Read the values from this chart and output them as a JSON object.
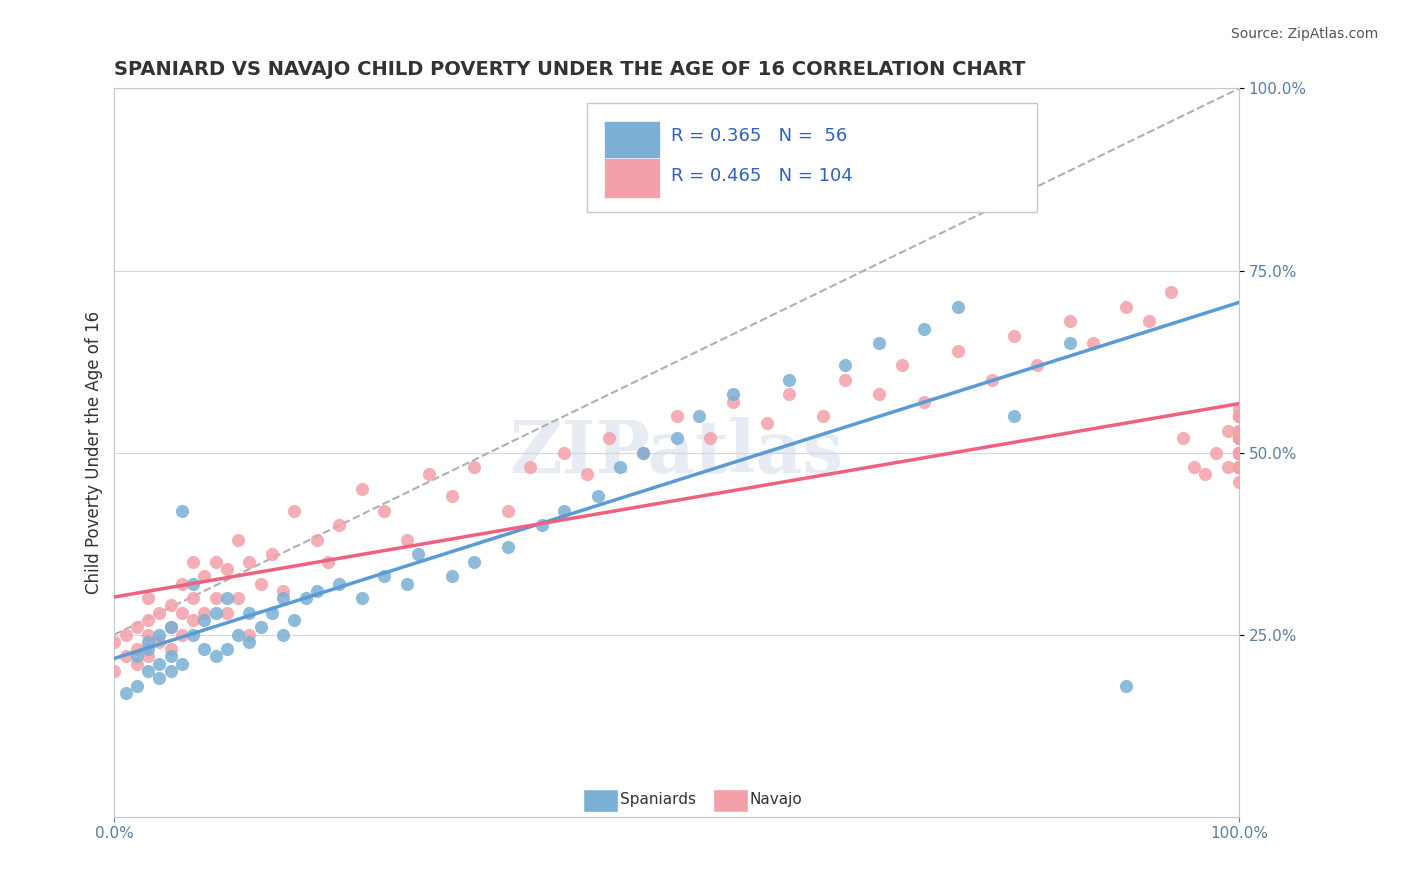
{
  "title": "SPANIARD VS NAVAJO CHILD POVERTY UNDER THE AGE OF 16 CORRELATION CHART",
  "source": "Source: ZipAtlas.com",
  "xlabel": "",
  "ylabel": "Child Poverty Under the Age of 16",
  "xlim": [
    0.0,
    1.0
  ],
  "ylim": [
    0.0,
    1.0
  ],
  "xtick_labels": [
    "0.0%",
    "100.0%"
  ],
  "ytick_labels": [
    "25.0%",
    "50.0%",
    "75.0%",
    "100.0%"
  ],
  "spaniard_color": "#7BAFD4",
  "navajo_color": "#F4A0A8",
  "spaniard_line_color": "#5B9BD5",
  "navajo_line_color": "#F06080",
  "trend_line_color": "#B0B0B0",
  "legend_R_spaniard": "0.365",
  "legend_N_spaniard": "56",
  "legend_R_navajo": "0.465",
  "legend_N_navajo": "104",
  "watermark": "ZIPatlas",
  "background_color": "#ffffff",
  "grid_color": "#D0D8E8",
  "spaniard_points_x": [
    0.01,
    0.02,
    0.02,
    0.03,
    0.03,
    0.03,
    0.04,
    0.04,
    0.04,
    0.05,
    0.05,
    0.05,
    0.06,
    0.06,
    0.07,
    0.07,
    0.08,
    0.08,
    0.09,
    0.09,
    0.1,
    0.1,
    0.11,
    0.12,
    0.12,
    0.13,
    0.14,
    0.15,
    0.15,
    0.16,
    0.17,
    0.18,
    0.2,
    0.22,
    0.24,
    0.26,
    0.27,
    0.3,
    0.32,
    0.35,
    0.38,
    0.4,
    0.43,
    0.45,
    0.47,
    0.5,
    0.52,
    0.55,
    0.6,
    0.65,
    0.68,
    0.72,
    0.75,
    0.8,
    0.85,
    0.9
  ],
  "spaniard_points_y": [
    0.17,
    0.18,
    0.22,
    0.2,
    0.23,
    0.24,
    0.19,
    0.21,
    0.25,
    0.2,
    0.22,
    0.26,
    0.21,
    0.42,
    0.25,
    0.32,
    0.23,
    0.27,
    0.22,
    0.28,
    0.23,
    0.3,
    0.25,
    0.24,
    0.28,
    0.26,
    0.28,
    0.25,
    0.3,
    0.27,
    0.3,
    0.31,
    0.32,
    0.3,
    0.33,
    0.32,
    0.36,
    0.33,
    0.35,
    0.37,
    0.4,
    0.42,
    0.44,
    0.48,
    0.5,
    0.52,
    0.55,
    0.58,
    0.6,
    0.62,
    0.65,
    0.67,
    0.7,
    0.55,
    0.65,
    0.18
  ],
  "navajo_points_x": [
    0.0,
    0.0,
    0.01,
    0.01,
    0.02,
    0.02,
    0.02,
    0.03,
    0.03,
    0.03,
    0.03,
    0.04,
    0.04,
    0.05,
    0.05,
    0.05,
    0.06,
    0.06,
    0.06,
    0.07,
    0.07,
    0.07,
    0.08,
    0.08,
    0.09,
    0.09,
    0.1,
    0.1,
    0.11,
    0.11,
    0.12,
    0.12,
    0.13,
    0.14,
    0.15,
    0.16,
    0.18,
    0.19,
    0.2,
    0.22,
    0.24,
    0.26,
    0.28,
    0.3,
    0.32,
    0.35,
    0.37,
    0.4,
    0.42,
    0.44,
    0.47,
    0.5,
    0.53,
    0.55,
    0.58,
    0.6,
    0.63,
    0.65,
    0.68,
    0.7,
    0.72,
    0.75,
    0.78,
    0.8,
    0.82,
    0.85,
    0.87,
    0.9,
    0.92,
    0.94,
    0.95,
    0.96,
    0.97,
    0.98,
    0.99,
    0.99,
    1.0,
    1.0,
    1.0,
    1.0,
    1.0,
    1.0,
    1.0,
    1.0,
    1.0,
    1.0,
    1.0,
    1.0,
    1.0,
    1.0,
    1.0,
    1.0,
    1.0,
    1.0,
    1.0,
    1.0,
    1.0,
    1.0,
    1.0,
    1.0,
    1.0,
    1.0,
    1.0,
    1.0
  ],
  "navajo_points_y": [
    0.2,
    0.24,
    0.22,
    0.25,
    0.21,
    0.23,
    0.26,
    0.22,
    0.25,
    0.27,
    0.3,
    0.24,
    0.28,
    0.23,
    0.26,
    0.29,
    0.25,
    0.28,
    0.32,
    0.27,
    0.3,
    0.35,
    0.28,
    0.33,
    0.3,
    0.35,
    0.28,
    0.34,
    0.3,
    0.38,
    0.25,
    0.35,
    0.32,
    0.36,
    0.31,
    0.42,
    0.38,
    0.35,
    0.4,
    0.45,
    0.42,
    0.38,
    0.47,
    0.44,
    0.48,
    0.42,
    0.48,
    0.5,
    0.47,
    0.52,
    0.5,
    0.55,
    0.52,
    0.57,
    0.54,
    0.58,
    0.55,
    0.6,
    0.58,
    0.62,
    0.57,
    0.64,
    0.6,
    0.66,
    0.62,
    0.68,
    0.65,
    0.7,
    0.68,
    0.72,
    0.52,
    0.48,
    0.47,
    0.5,
    0.53,
    0.48,
    0.5,
    0.52,
    0.5,
    0.48,
    0.46,
    0.52,
    0.5,
    0.55,
    0.5,
    0.48,
    0.52,
    0.5,
    0.56,
    0.52,
    0.48,
    0.55,
    0.53,
    0.5,
    0.52,
    0.48,
    0.55,
    0.5,
    0.52,
    0.48,
    0.5,
    0.52,
    0.55,
    0.53
  ]
}
